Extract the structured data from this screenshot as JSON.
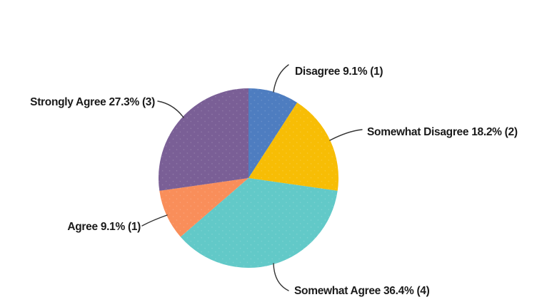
{
  "chart_data": {
    "type": "pie",
    "title": "",
    "start_angle_deg": 0,
    "direction": "clockwise",
    "total_responses": 11,
    "background_color": "#ffffff",
    "leader_line_color": "#333333",
    "label_text_color": "#1a1a1a",
    "slices": [
      {
        "label": "Disagree",
        "pct": 9.1,
        "count": 1,
        "color": "#4e7dc0",
        "label_full": "Disagree 9.1% (1)"
      },
      {
        "label": "Somewhat Disagree",
        "pct": 18.2,
        "count": 2,
        "color": "#f7bd05",
        "label_full": "Somewhat Disagree 18.2% (2)"
      },
      {
        "label": "Somewhat Agree",
        "pct": 36.4,
        "count": 4,
        "color": "#62c9c8",
        "label_full": "Somewhat Agree 36.4% (4)"
      },
      {
        "label": "Agree",
        "pct": 9.1,
        "count": 1,
        "color": "#f98e5a",
        "label_full": "Agree 9.1% (1)"
      },
      {
        "label": "Strongly Agree",
        "pct": 27.3,
        "count": 3,
        "color": "#7a5f96",
        "label_full": "Strongly Agree 27.3% (3)"
      }
    ]
  }
}
